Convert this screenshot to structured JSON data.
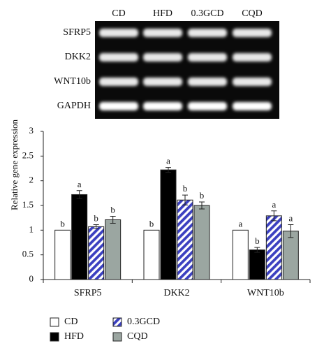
{
  "gel": {
    "lanes": [
      "CD",
      "HFD",
      "0.3GCD",
      "CQD"
    ],
    "rows": [
      "SFRP5",
      "DKK2",
      "WNT10b",
      "GAPDH"
    ]
  },
  "chart_data": {
    "type": "bar",
    "ylabel": "Relative gene expression",
    "categories": [
      "SFRP5",
      "DKK2",
      "WNT10b"
    ],
    "ylim": [
      0,
      3
    ],
    "yticks": [
      0,
      0.5,
      1,
      1.5,
      2,
      2.5,
      3
    ],
    "series": [
      {
        "name": "CD",
        "color": "#ffffff",
        "values": [
          1,
          1,
          1
        ],
        "letters": [
          "b",
          "b",
          "a"
        ]
      },
      {
        "name": "HFD",
        "color": "#000000",
        "values": [
          1.72,
          2.22,
          0.6
        ],
        "errors": [
          0.08,
          0.05,
          0.05
        ],
        "letters": [
          "a",
          "a",
          "b"
        ]
      },
      {
        "name": "0.3GCD",
        "color": "#3b40c0",
        "pattern": "stripes",
        "values": [
          1.07,
          1.61,
          1.29
        ],
        "errors": [
          0.04,
          0.1,
          0.1
        ],
        "letters": [
          "b",
          "b",
          "a"
        ]
      },
      {
        "name": "CQD",
        "color": "#9ba6a1",
        "values": [
          1.21,
          1.5,
          0.98
        ],
        "errors": [
          0.07,
          0.07,
          0.13
        ],
        "letters": [
          "b",
          "b",
          "a"
        ]
      }
    ]
  }
}
